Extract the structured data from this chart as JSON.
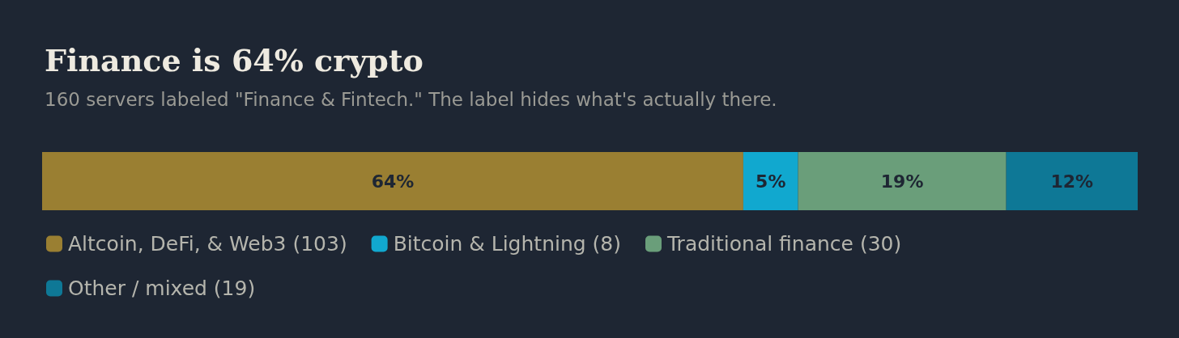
{
  "chart_data": {
    "type": "bar",
    "title": "Finance is 64% crypto",
    "subtitle": "160 servers labeled \"Finance & Fintech.\" The label hides what's actually there.",
    "orientation": "horizontal",
    "stacked": true,
    "categories": [
      null
    ],
    "xlim": [
      0,
      100
    ],
    "legend": "bottom left",
    "series": [
      {
        "name": "Altcoin, DeFi, & Web3 (103)",
        "color": "#9a7f32",
        "values": [
          64
        ],
        "value_labels": [
          "64%"
        ]
      },
      {
        "name": "Bitcoin & Lightning (8)",
        "color": "#11a8cf",
        "values": [
          5
        ],
        "value_labels": [
          "5%"
        ]
      },
      {
        "name": "Traditional finance (30)",
        "color": "#6a9e7a",
        "values": [
          19
        ],
        "value_labels": [
          "19%"
        ]
      },
      {
        "name": "Other / mixed (19)",
        "color": "#0e7896",
        "values": [
          12
        ],
        "value_labels": [
          "12%"
        ]
      }
    ]
  }
}
